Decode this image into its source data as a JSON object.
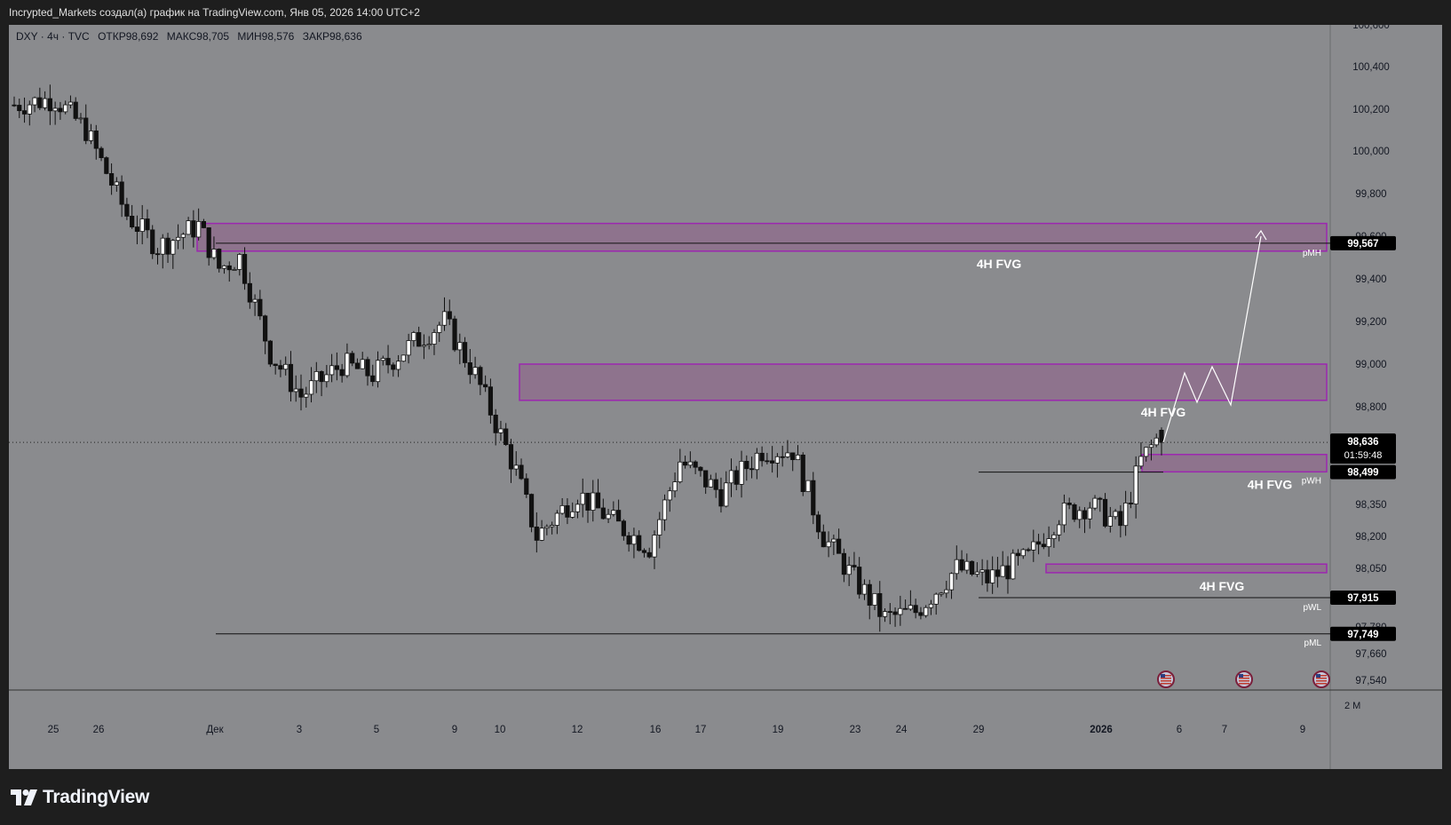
{
  "header": {
    "caption": "Incrypted_Markets создал(а) график на TradingView.com, Янв 05, 2026 14:00 UTC+2"
  },
  "legend": {
    "symbol": "DXY · 4ч · TVC",
    "open": "ОТКР98,692",
    "high": "МАКС98,705",
    "low": "МИН98,576",
    "close": "ЗАКР98,636"
  },
  "price_axis": {
    "ticks": [
      "100,600",
      "100,400",
      "100,200",
      "100,000",
      "99,800",
      "99,600",
      "99,400",
      "99,200",
      "99,000",
      "98,800",
      "98,350",
      "98,200",
      "98,050",
      "97,780",
      "97,660",
      "97,540"
    ],
    "tick_values": [
      100.6,
      100.4,
      100.2,
      100.0,
      99.8,
      99.6,
      99.4,
      99.2,
      99.0,
      98.8,
      98.35,
      98.2,
      98.05,
      97.78,
      97.66,
      97.54
    ],
    "labels": {
      "level_1": "99,567",
      "current": "98,636",
      "countdown": "01:59:48",
      "level_2": "98,499",
      "level_3": "97,915",
      "level_4": "97,749"
    },
    "scale_label": "2 M"
  },
  "time_axis": {
    "labels": [
      "25",
      "26",
      "Дек",
      "3",
      "5",
      "9",
      "10",
      "12",
      "16",
      "17",
      "19",
      "23",
      "24",
      "29",
      "2026",
      "6",
      "7",
      "9"
    ]
  },
  "annotations": {
    "fvg_1": "4H FVG",
    "fvg_2": "4H FVG",
    "fvg_3": "4H FVG",
    "fvg_4": "4H FVG",
    "pmh": "pMH",
    "pwh": "pWH",
    "pwl": "pWL",
    "pml": "pML"
  },
  "colors": {
    "background": "#8a8b8e",
    "zone_fill": "#8e6e8d",
    "zone_border": "#9c27b0",
    "bull": "#ffffff",
    "bear": "#111111"
  },
  "events": [
    "us-flag-icon",
    "us-flag-icon",
    "us-flag-icon"
  ],
  "brand": "TradingView",
  "chart_data": {
    "type": "candlestick",
    "timeframe": "4h",
    "symbol": "DXY",
    "last_candle": {
      "open": 98.692,
      "high": 98.705,
      "low": 98.576,
      "close": 98.636
    },
    "levels": {
      "pMH": 99.567,
      "pWH": 98.499,
      "pWL": 97.915,
      "pML": 97.749
    },
    "fvg_zones": [
      {
        "label": "4H FVG",
        "low": 99.53,
        "high": 99.66
      },
      {
        "label": "4H FVG",
        "low": 98.83,
        "high": 99.0
      },
      {
        "label": "4H FVG",
        "low": 98.5,
        "high": 98.58
      },
      {
        "label": "4H FVG",
        "low": 98.03,
        "high": 98.07
      }
    ],
    "price_range": [
      97.5,
      100.66
    ]
  }
}
